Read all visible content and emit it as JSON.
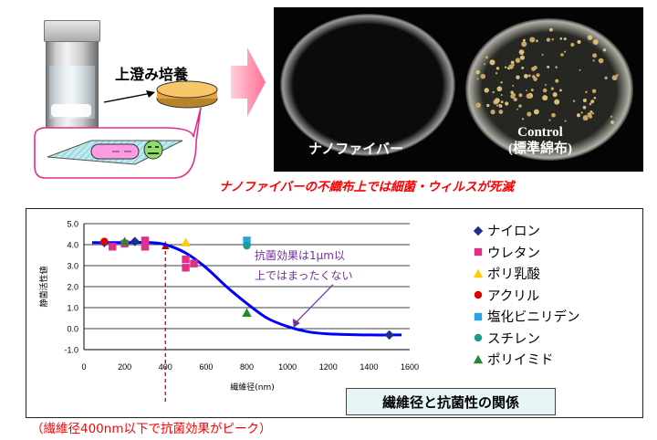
{
  "scene": {
    "supernatant_label": "上澄み培養",
    "arrow_label": ""
  },
  "photo": {
    "nanofiber_label": "ナノファイバー",
    "control_label_line1": "Control",
    "control_label_line2": "(標準綿布)"
  },
  "kill_caption": "ナノファイバーの不織布上では細菌・ウィルスが死滅",
  "peak_caption": "（繊維径400nm以下で抗菌効果がピーク）",
  "relation_box": "繊維径と抗菌性の関係",
  "colors": {
    "red_text": "#ff0000",
    "curve": "#0000ff",
    "dish_background": "#040404",
    "box_fill": "#e6f6f7"
  },
  "chart_data": {
    "type": "scatter",
    "xlabel": "繊維径(nm)",
    "ylabel": "静菌活性値",
    "xlim": [
      0,
      1600
    ],
    "ylim": [
      -1.0,
      5.0
    ],
    "xticks": [
      0,
      200,
      400,
      600,
      800,
      1000,
      1200,
      1400,
      1600
    ],
    "yticks": [
      "5.0",
      "4.0",
      "3.0",
      "2.0",
      "1.0",
      "0.0",
      "-1.0"
    ],
    "grid": "horizontal",
    "legend_position": "right",
    "series": [
      {
        "name": "ナイロン",
        "color": "#1f2f8f",
        "marker": "diamond",
        "points": [
          [
            100,
            4.1
          ],
          [
            250,
            4.15
          ],
          [
            1500,
            -0.3
          ]
        ]
      },
      {
        "name": "ウレタン",
        "color": "#e0308a",
        "marker": "square",
        "points": [
          [
            140,
            3.9
          ],
          [
            200,
            4.05
          ],
          [
            300,
            3.9
          ],
          [
            300,
            4.2
          ],
          [
            500,
            2.9
          ],
          [
            500,
            3.3
          ],
          [
            540,
            3.1
          ]
        ]
      },
      {
        "name": "ポリ乳酸",
        "color": "#ffcc00",
        "marker": "triangle",
        "points": [
          [
            500,
            4.1
          ]
        ]
      },
      {
        "name": "アクリル",
        "color": "#e00000",
        "marker": "circle",
        "points": [
          [
            100,
            4.15
          ]
        ]
      },
      {
        "name": "塩化ビニリデン",
        "color": "#29a3e6",
        "marker": "square",
        "points": [
          [
            800,
            4.2
          ]
        ]
      },
      {
        "name": "スチレン",
        "color": "#1e9b8a",
        "marker": "circle",
        "points": [
          [
            800,
            3.95
          ]
        ]
      },
      {
        "name": "ポリイミド",
        "color": "#1f8a2e",
        "marker": "triangle",
        "points": [
          [
            200,
            4.15
          ],
          [
            800,
            0.75
          ]
        ]
      }
    ],
    "fit_curve": {
      "color": "#0000ff",
      "points": [
        [
          40,
          4.1
        ],
        [
          200,
          4.1
        ],
        [
          320,
          4.1
        ],
        [
          400,
          4.0
        ],
        [
          500,
          3.6
        ],
        [
          600,
          2.9
        ],
        [
          700,
          2.0
        ],
        [
          800,
          1.2
        ],
        [
          900,
          0.5
        ],
        [
          1000,
          0.1
        ],
        [
          1100,
          -0.15
        ],
        [
          1200,
          -0.25
        ],
        [
          1400,
          -0.3
        ],
        [
          1560,
          -0.3
        ]
      ]
    },
    "threshold": {
      "x": 400,
      "color": "#cc0000"
    },
    "annotation": {
      "text_line1": "抗菌効果は1μm以",
      "text_line2": "上ではまったくない",
      "color": "#7030a0",
      "arrow_to": [
        1030,
        0.05
      ]
    }
  }
}
